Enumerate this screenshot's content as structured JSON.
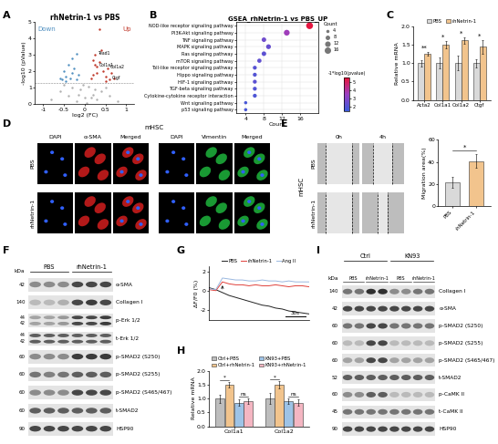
{
  "chart_data": [
    {
      "panel": "A",
      "type": "scatter",
      "title": "rhNetrin-1 vs PBS",
      "xlabel": "log2 (FC)",
      "ylabel": "-log10 (pValue)",
      "xlim": [
        -1.2,
        1.2
      ],
      "xticks": [
        -1,
        -0.5,
        0,
        0.5,
        1
      ],
      "ylim": [
        0,
        5
      ],
      "yticks": [
        0,
        1,
        2,
        3,
        4,
        5
      ],
      "p_threshold": 1.3,
      "series": [
        {
          "name": "Down",
          "color": "#4f8fc0",
          "x": [
            -0.55,
            -0.5,
            -0.45,
            -0.4,
            -0.35,
            -0.3,
            -0.3,
            -0.25,
            -0.2,
            -0.2,
            -0.15,
            -0.45,
            -0.6
          ],
          "values": [
            1.5,
            2.0,
            1.7,
            2.4,
            1.6,
            2.8,
            1.9,
            2.2,
            1.5,
            3.1,
            1.8,
            1.4,
            1.6
          ]
        },
        {
          "name": "Up",
          "color": "#c0392b",
          "x": [
            0.15,
            0.2,
            0.25,
            0.3,
            0.3,
            0.35,
            0.4,
            0.45,
            0.5,
            0.55,
            0.6,
            0.2,
            0.25,
            0.35,
            0.5,
            0.65,
            0.7
          ],
          "values": [
            1.6,
            2.7,
            3.0,
            2.3,
            1.9,
            2.6,
            3.3,
            2.0,
            1.7,
            2.2,
            1.5,
            1.8,
            2.4,
            4.6,
            1.4,
            1.9,
            1.6
          ]
        },
        {
          "color": "#b0b0b0",
          "x": [
            -0.8,
            -0.6,
            -0.4,
            -0.3,
            -0.2,
            -0.1,
            0,
            0.1,
            0.2,
            0.3,
            0.4,
            0.5,
            0.6,
            0.8,
            -0.5,
            -0.15,
            0.05,
            0.25,
            -0.05,
            0.15
          ],
          "values": [
            0.3,
            0.8,
            0.5,
            1.0,
            0.2,
            0.9,
            0.4,
            1.1,
            0.6,
            0.3,
            0.8,
            1.0,
            0.5,
            0.2,
            1.2,
            0.6,
            0.1,
            0.9,
            1.2,
            0.4
          ]
        }
      ],
      "annotations": [
        {
          "text": "Tead1",
          "x": 0.25,
          "y": 3.0
        },
        {
          "text": "Col1a1",
          "x": 0.3,
          "y": 2.3
        },
        {
          "text": "Col1a2",
          "x": 0.55,
          "y": 2.2
        },
        {
          "text": "Ctgf",
          "x": 0.6,
          "y": 1.5
        }
      ]
    },
    {
      "panel": "B",
      "type": "dot",
      "title": "GSEA_rhNetrin-1 vs PBS_UP",
      "xlabel": "Count",
      "categories": [
        "NOD-like receptor signaling pathway",
        "PI3K-Akt signaling pathway",
        "TNF signaling pathway",
        "MAPK signaling pathway",
        "Ras signaling pathway",
        "mTOR signaling pathway",
        "Toll-like receptor signaling pathway",
        "Hippo signaling pathway",
        "HIF-1 signaling pathway",
        "TGF-beta signaling pathway",
        "Cytokine-cytokine receptor interaction",
        "Wnt signaling pathway",
        "p53 signaling pathway"
      ],
      "values": [
        18,
        13,
        8,
        9,
        8,
        7,
        6,
        6,
        6,
        6,
        6,
        4,
        4
      ],
      "pvalue_score": [
        5.4,
        3.6,
        2.6,
        2.4,
        2.2,
        2.3,
        2.1,
        2.0,
        2.2,
        2.0,
        1.9,
        1.8,
        1.8
      ],
      "xlim": [
        2,
        20
      ],
      "xticks": [
        4,
        8,
        12,
        16
      ],
      "colorbar": {
        "label": "-1*log10(pvalue)",
        "range": [
          1.5,
          5.5
        ],
        "ticks": [
          2,
          3,
          4,
          5
        ]
      },
      "size_legend": {
        "label": "Count",
        "values": [
          4,
          8,
          12,
          16
        ]
      }
    },
    {
      "panel": "C",
      "type": "bar",
      "ylabel": "Relative mRNA",
      "categories": [
        "Acta2",
        "Col1a1",
        "Col1a2",
        "Ctgf"
      ],
      "series": [
        {
          "name": "PBS",
          "color": "#d9d9d9",
          "values": [
            1.0,
            1.0,
            1.0,
            1.0
          ],
          "errors": [
            0.08,
            0.15,
            0.2,
            0.12
          ]
        },
        {
          "name": "rhNetrin-1",
          "color": "#f2c48d",
          "values": [
            1.25,
            1.5,
            1.62,
            1.45
          ],
          "errors": [
            0.05,
            0.1,
            0.08,
            0.18
          ]
        }
      ],
      "ylim": [
        0,
        2
      ],
      "yticks": [
        0.0,
        0.5,
        1.0,
        1.5,
        2.0
      ],
      "significance": [
        "**",
        "*",
        "*",
        "*"
      ],
      "legend": "top"
    },
    {
      "panel": "E",
      "type": "bar",
      "ylabel": "Migration area(%)",
      "categories": [
        "PBS",
        "rhNetrin-1"
      ],
      "values": [
        22,
        41
      ],
      "errors": [
        5,
        6
      ],
      "colors": [
        "#d9d9d9",
        "#f2c48d"
      ],
      "ylim": [
        0,
        60
      ],
      "yticks": [
        0,
        20,
        40,
        60
      ],
      "significance": "*"
    },
    {
      "panel": "G",
      "type": "line",
      "ylabel": "ΔF/F0 (%)",
      "x": [
        0,
        10,
        20,
        30,
        40,
        50,
        60,
        70,
        80,
        90,
        100,
        110,
        120,
        130,
        140,
        150
      ],
      "series": [
        {
          "name": "PBS",
          "color": "#222222",
          "values": [
            0.3,
            0.1,
            -0.2,
            -0.5,
            -0.7,
            -0.9,
            -1.1,
            -1.3,
            -1.5,
            -1.6,
            -1.8,
            -1.9,
            -2.1,
            -2.2,
            -2.3,
            -2.4
          ]
        },
        {
          "name": "rhNetrin-1",
          "color": "#e0403a",
          "values": [
            0.1,
            0.0,
            0.9,
            0.7,
            0.6,
            0.6,
            0.5,
            0.6,
            0.5,
            0.5,
            0.6,
            0.5,
            0.4,
            0.5,
            0.5,
            0.4
          ]
        },
        {
          "name": "Ang II",
          "color": "#9ab8e0",
          "values": [
            0.2,
            0.1,
            1.3,
            1.2,
            1.1,
            1.1,
            1.0,
            1.0,
            1.1,
            1.0,
            1.0,
            0.9,
            1.0,
            0.9,
            0.9,
            0.9
          ]
        }
      ],
      "xlim": [
        0,
        150
      ],
      "ylim": [
        -3,
        2.5
      ],
      "yticks": [
        -2,
        0,
        2
      ],
      "tick_labels": "y",
      "stimulus_x": 20,
      "scale_bar": {
        "value": 30,
        "label": "30s"
      },
      "legend": "top"
    },
    {
      "panel": "H",
      "type": "bar",
      "ylabel": "Relative mRNA",
      "categories": [
        "Col1a1",
        "Col1a2"
      ],
      "series": [
        {
          "name": "Ctrl+PBS",
          "color": "#bdbdbd",
          "values": [
            1.0,
            1.0
          ],
          "errors": [
            0.15,
            0.2
          ]
        },
        {
          "name": "Ctrl+rhNetrin-1",
          "color": "#f2c48d",
          "values": [
            1.5,
            1.5
          ],
          "errors": [
            0.1,
            0.12
          ]
        },
        {
          "name": "KN93+PBS",
          "color": "#9ec3e6",
          "values": [
            0.85,
            0.9
          ],
          "errors": [
            0.12,
            0.1
          ]
        },
        {
          "name": "KN93+rhNetrin-1",
          "color": "#f4b6c2",
          "values": [
            0.9,
            0.85
          ],
          "errors": [
            0.1,
            0.12
          ]
        }
      ],
      "ylim": [
        0,
        2
      ],
      "yticks": [
        0.0,
        0.5,
        1.0,
        1.5,
        2.0
      ],
      "comparisons": [
        [
          "*",
          "ns"
        ],
        [
          "*",
          "ns"
        ]
      ],
      "legend": "top"
    }
  ],
  "images": [
    {
      "panel": "D",
      "group": "mHSC",
      "columns": [
        "DAPI",
        "α-SMA",
        "Merged",
        "DAPI",
        "Vimentin",
        "Merged"
      ],
      "rows": [
        "PBS",
        "rhNetrin-1"
      ]
    },
    {
      "panel": "E",
      "group": "mHSC",
      "columns": [
        "0h",
        "4h"
      ],
      "rows": [
        "PBS",
        "rhNetrin-1"
      ]
    }
  ],
  "blots": [
    {
      "panel": "F",
      "unit": "kDa",
      "groups": [
        {
          "label": "PBS",
          "lanes": 3
        },
        {
          "label": "rhNetrin-1",
          "lanes": 3
        }
      ],
      "rows": [
        {
          "label": "α-SMA",
          "mw": [
            42
          ],
          "intensity": [
            0.5,
            0.5,
            0.5,
            0.8,
            0.8,
            0.8
          ]
        },
        {
          "label": "Collagen I",
          "mw": [
            140
          ],
          "intensity": [
            0.3,
            0.3,
            0.35,
            0.8,
            0.85,
            0.8
          ]
        },
        {
          "label": "p-Erk 1/2",
          "mw": [
            44,
            42
          ],
          "intensity": [
            0.4,
            0.4,
            0.45,
            0.8,
            0.8,
            0.85
          ]
        },
        {
          "label": "t-Erk 1/2",
          "mw": [
            44,
            42
          ],
          "intensity": [
            0.7,
            0.7,
            0.7,
            0.7,
            0.7,
            0.7
          ]
        },
        {
          "label": "p-SMAD2 (S250)",
          "mw": [
            60
          ],
          "intensity": [
            0.5,
            0.5,
            0.5,
            0.85,
            0.85,
            0.85
          ]
        },
        {
          "label": "p-SMAD2 (S255)",
          "mw": [
            60
          ],
          "intensity": [
            0.6,
            0.55,
            0.6,
            0.7,
            0.7,
            0.7
          ]
        },
        {
          "label": "p-SMAD2 (S465/467)",
          "mw": [
            60
          ],
          "intensity": [
            0.5,
            0.5,
            0.5,
            0.8,
            0.8,
            0.8
          ]
        },
        {
          "label": "t-SMAD2",
          "mw": [
            60
          ],
          "intensity": [
            0.7,
            0.7,
            0.7,
            0.7,
            0.7,
            0.7
          ]
        },
        {
          "label": "HSP90",
          "mw": [
            90
          ],
          "intensity": [
            0.8,
            0.8,
            0.8,
            0.8,
            0.8,
            0.8
          ]
        }
      ]
    },
    {
      "panel": "I",
      "unit": "kDa",
      "groups": [
        {
          "label": "Ctrl",
          "lanes": 4,
          "subgroups": [
            "PBS",
            "rhNetrin-1"
          ]
        },
        {
          "label": "KN93",
          "lanes": 4,
          "subgroups": [
            "PBS",
            "rhNetrin-1"
          ]
        }
      ],
      "rows": [
        {
          "label": "Collagen I",
          "mw": [
            140
          ],
          "intensity": [
            0.6,
            0.6,
            0.9,
            0.9,
            0.5,
            0.5,
            0.6,
            0.6
          ]
        },
        {
          "label": "α-SMA",
          "mw": [
            42
          ],
          "intensity": [
            0.8,
            0.8,
            0.8,
            0.8,
            0.8,
            0.8,
            0.8,
            0.8
          ]
        },
        {
          "label": "p-SMAD2 (S250)",
          "mw": [
            60
          ],
          "intensity": [
            0.6,
            0.6,
            0.8,
            0.8,
            0.6,
            0.6,
            0.6,
            0.6
          ]
        },
        {
          "label": "p-SMAD2 (S255)",
          "mw": [
            60
          ],
          "intensity": [
            0.3,
            0.3,
            0.8,
            0.8,
            0.3,
            0.3,
            0.3,
            0.3
          ]
        },
        {
          "label": "p-SMAD2 (S465/467)",
          "mw": [
            60
          ],
          "intensity": [
            0.4,
            0.4,
            0.8,
            0.8,
            0.4,
            0.4,
            0.4,
            0.4
          ]
        },
        {
          "label": "t-SMAD2",
          "mw": [
            52
          ],
          "intensity": [
            0.7,
            0.7,
            0.7,
            0.7,
            0.7,
            0.7,
            0.7,
            0.7
          ]
        },
        {
          "label": "p-CaMK II",
          "mw": [
            60
          ],
          "intensity": [
            0.5,
            0.5,
            0.7,
            0.7,
            0.3,
            0.3,
            0.3,
            0.3
          ]
        },
        {
          "label": "t-CaMK II",
          "mw": [
            45
          ],
          "intensity": [
            0.6,
            0.6,
            0.6,
            0.6,
            0.6,
            0.6,
            0.6,
            0.6
          ]
        },
        {
          "label": "HSP90",
          "mw": [
            90
          ],
          "intensity": [
            0.8,
            0.8,
            0.8,
            0.8,
            0.8,
            0.8,
            0.8,
            0.8
          ]
        }
      ]
    }
  ]
}
